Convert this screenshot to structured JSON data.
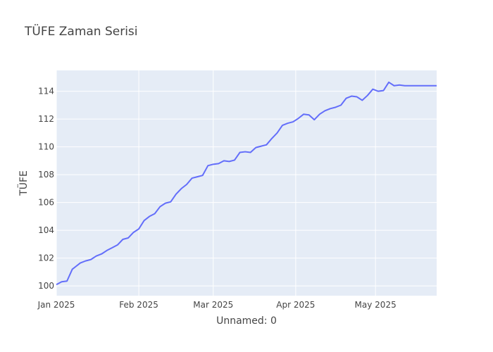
{
  "chart_data": {
    "type": "line",
    "title": "TÜFE Zaman Serisi",
    "xlabel": "Unnamed: 0",
    "ylabel": "TÜFE",
    "x_tick_labels": [
      "Jan 2025",
      "Feb 2025",
      "Mar 2025",
      "Apr 2025",
      "May 2025"
    ],
    "y_tick_labels": [
      "100",
      "102",
      "104",
      "106",
      "108",
      "110",
      "112",
      "114"
    ],
    "x_tick_dates": [
      "2025-01-01",
      "2025-02-01",
      "2025-03-01",
      "2025-04-01",
      "2025-05-01"
    ],
    "y_ticks": [
      100,
      102,
      104,
      106,
      108,
      110,
      112,
      114
    ],
    "xlim": [
      "2025-01-01",
      "2025-05-24"
    ],
    "ylim": [
      99.3,
      115.5
    ],
    "grid": true,
    "line_color": "#636efa",
    "plot_bg": "#e5ecf6",
    "series": [
      {
        "x": [
          "2025-01-01",
          "2025-01-03",
          "2025-01-05",
          "2025-01-07",
          "2025-01-08",
          "2025-01-10",
          "2025-01-12",
          "2025-01-14",
          "2025-01-16",
          "2025-01-18",
          "2025-01-20",
          "2025-01-22",
          "2025-01-24",
          "2025-01-26",
          "2025-01-28",
          "2025-01-30",
          "2025-02-01",
          "2025-02-03",
          "2025-02-05",
          "2025-02-07",
          "2025-02-09",
          "2025-02-11",
          "2025-02-13",
          "2025-02-15",
          "2025-02-17",
          "2025-02-19",
          "2025-02-21",
          "2025-02-23",
          "2025-02-25",
          "2025-02-27",
          "2025-03-01",
          "2025-03-03",
          "2025-03-05",
          "2025-03-07",
          "2025-03-09",
          "2025-03-11",
          "2025-03-13",
          "2025-03-15",
          "2025-03-17",
          "2025-03-19",
          "2025-03-21",
          "2025-03-23",
          "2025-03-25",
          "2025-03-27",
          "2025-03-29",
          "2025-03-31",
          "2025-04-02",
          "2025-04-04",
          "2025-04-06",
          "2025-04-08",
          "2025-04-10",
          "2025-04-12",
          "2025-04-14",
          "2025-04-16",
          "2025-04-18",
          "2025-04-20",
          "2025-04-22",
          "2025-04-24",
          "2025-04-26",
          "2025-04-28",
          "2025-04-30",
          "2025-05-02",
          "2025-05-04",
          "2025-05-06",
          "2025-05-08",
          "2025-05-10",
          "2025-05-12",
          "2025-05-14",
          "2025-05-16",
          "2025-05-18",
          "2025-05-20",
          "2025-05-22",
          "2025-05-24"
        ],
        "values": [
          100.1,
          100.3,
          100.35,
          101.2,
          101.35,
          101.65,
          101.8,
          101.9,
          102.15,
          102.3,
          102.55,
          102.75,
          102.95,
          103.35,
          103.45,
          103.85,
          104.1,
          104.7,
          105.0,
          105.2,
          105.7,
          105.95,
          106.05,
          106.6,
          107.0,
          107.3,
          107.75,
          107.85,
          107.95,
          108.65,
          108.75,
          108.8,
          109.0,
          108.95,
          109.05,
          109.6,
          109.65,
          109.6,
          109.95,
          110.05,
          110.15,
          110.6,
          111.0,
          111.55,
          111.7,
          111.8,
          112.05,
          112.35,
          112.3,
          111.95,
          112.35,
          112.6,
          112.75,
          112.85,
          113.0,
          113.5,
          113.65,
          113.6,
          113.35,
          113.7,
          114.15,
          114.0,
          114.05,
          114.65,
          114.4,
          114.45,
          114.4,
          114.4,
          114.4,
          114.4,
          114.4,
          114.4,
          114.4
        ]
      }
    ]
  }
}
